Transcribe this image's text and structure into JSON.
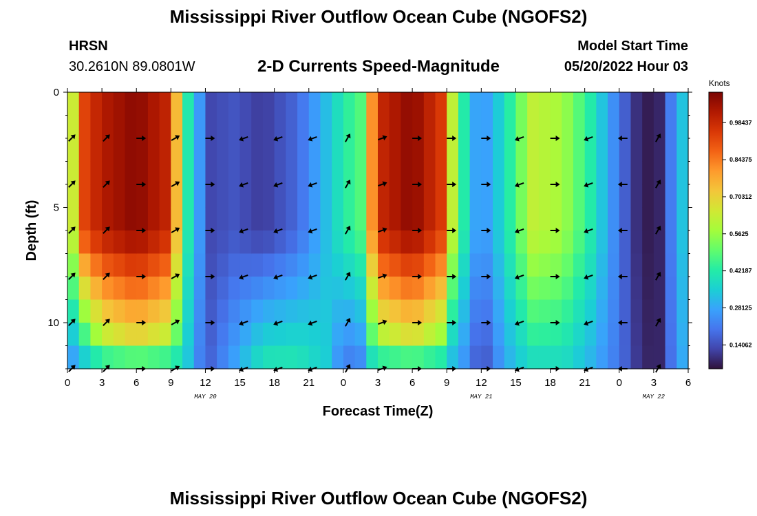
{
  "header": {
    "title": "Mississippi River Outflow Ocean Cube (NGOFS2)",
    "station": "HRSN",
    "coords": "30.2610N  89.0801W",
    "subtitle": "2-D Currents Speed-Magnitude",
    "model_label": "Model Start Time",
    "model_time": "05/20/2022 Hour 03"
  },
  "footer": {
    "title": "Mississippi River Outflow Ocean Cube (NGOFS2)"
  },
  "colors": {
    "palette": [
      "#30123b",
      "#4145ab",
      "#4675ed",
      "#39a2fc",
      "#1bcfd4",
      "#24eca6",
      "#61fc6c",
      "#a4fc3b",
      "#d1e834",
      "#f3c63a",
      "#fe9b2d",
      "#f36315",
      "#d93806",
      "#b11901",
      "#7a0402"
    ]
  },
  "chart_data": {
    "type": "heatmap",
    "title": "2-D Currents Speed-Magnitude",
    "xlabel": "Forecast Time(Z)",
    "ylabel": "Depth (ft)",
    "x_range_hours": [
      0,
      54
    ],
    "x_ticks": [
      "0",
      "3",
      "6",
      "9",
      "12",
      "15",
      "18",
      "21",
      "0",
      "3",
      "6",
      "9",
      "12",
      "15",
      "18",
      "21",
      "0",
      "3",
      "6"
    ],
    "date_labels": [
      {
        "text": "MAY 20",
        "at_hour": 12
      },
      {
        "text": "MAY 21",
        "at_hour": 36
      },
      {
        "text": "MAY 22",
        "at_hour": 51
      }
    ],
    "y_range": [
      0,
      12
    ],
    "y_ticks": [
      "0",
      "5",
      "10"
    ],
    "y_tick_values": [
      0,
      5,
      10
    ],
    "y_reversed": true,
    "colorbar": {
      "unit": "Knots",
      "min": 0.05,
      "max": 1.1,
      "labels": [
        "0.98437",
        "0.84375",
        "0.70312",
        "0.5625",
        "0.42187",
        "0.28125",
        "0.14062"
      ],
      "label_values": [
        0.98437,
        0.84375,
        0.70312,
        0.5625,
        0.42187,
        0.28125,
        0.14062
      ]
    },
    "depths": [
      0.5,
      1.5,
      2.5,
      3.5,
      4.5,
      5.5,
      6.5,
      7.5,
      8.5,
      9.5,
      10.5,
      11.5
    ],
    "time_profile": [
      {
        "h": 0,
        "s": 0.38,
        "b": 0.25
      },
      {
        "h": 1,
        "s": 0.9,
        "b": 0.25
      },
      {
        "h": 3,
        "s": 1.02,
        "b": 0.5
      },
      {
        "h": 6,
        "s": 1.08,
        "b": 0.58
      },
      {
        "h": 8.5,
        "s": 1.0,
        "b": 0.52
      },
      {
        "h": 9.6,
        "s": 0.72,
        "b": 0.42
      },
      {
        "h": 10.6,
        "s": 0.38,
        "b": 0.32
      },
      {
        "h": 11.5,
        "s": 0.26,
        "b": 0.22
      },
      {
        "h": 12.5,
        "s": 0.13,
        "b": 0.18
      },
      {
        "h": 14.5,
        "s": 0.15,
        "b": 0.28
      },
      {
        "h": 17,
        "s": 0.11,
        "b": 0.42
      },
      {
        "h": 20,
        "s": 0.18,
        "b": 0.42
      },
      {
        "h": 22.5,
        "s": 0.32,
        "b": 0.35
      },
      {
        "h": 24,
        "s": 0.42,
        "b": 0.2
      },
      {
        "h": 25.5,
        "s": 0.48,
        "b": 0.22
      },
      {
        "h": 27,
        "s": 0.98,
        "b": 0.48
      },
      {
        "h": 30,
        "s": 1.08,
        "b": 0.55
      },
      {
        "h": 32.5,
        "s": 0.95,
        "b": 0.45
      },
      {
        "h": 33.5,
        "s": 0.62,
        "b": 0.3
      },
      {
        "h": 35,
        "s": 0.32,
        "b": 0.22
      },
      {
        "h": 36,
        "s": 0.24,
        "b": 0.12
      },
      {
        "h": 38,
        "s": 0.38,
        "b": 0.28
      },
      {
        "h": 40.5,
        "s": 0.62,
        "b": 0.38
      },
      {
        "h": 43,
        "s": 0.58,
        "b": 0.38
      },
      {
        "h": 45.5,
        "s": 0.42,
        "b": 0.3
      },
      {
        "h": 48,
        "s": 0.2,
        "b": 0.2
      },
      {
        "h": 50,
        "s": 0.06,
        "b": 0.08
      },
      {
        "h": 51.5,
        "s": 0.08,
        "b": 0.08
      },
      {
        "h": 53,
        "s": 0.28,
        "b": 0.25
      },
      {
        "h": 54,
        "s": 0.38,
        "b": 0.32
      }
    ],
    "vector_depths": [
      2,
      4,
      6,
      8,
      10,
      12
    ],
    "vector_hours": [
      0,
      3,
      6,
      9,
      12,
      15,
      18,
      21,
      24,
      27,
      30,
      33,
      36,
      39,
      42,
      45,
      48,
      51
    ],
    "vector_directions_deg": [
      45,
      45,
      0,
      30,
      0,
      200,
      200,
      200,
      60,
      20,
      0,
      0,
      0,
      200,
      0,
      200,
      180,
      60
    ]
  }
}
